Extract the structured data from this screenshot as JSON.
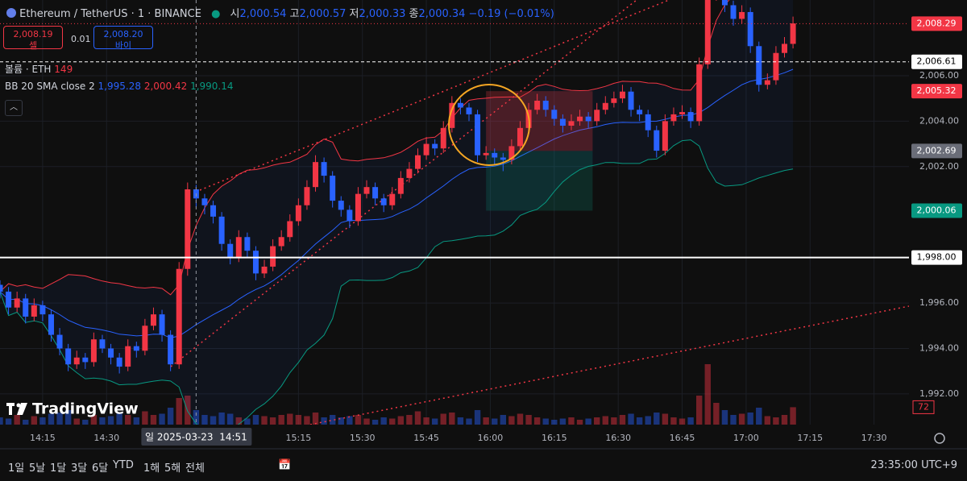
{
  "header": {
    "symbol": "Ethereum / TetherUS · 1 · BINANCE",
    "o_label": "시",
    "o": "2,000.54",
    "h_label": "고",
    "h": "2,000.57",
    "l_label": "저",
    "l": "2,000.33",
    "c_label": "종",
    "c": "2,000.34",
    "change": "−0.19 (−0.01%)"
  },
  "trade": {
    "sell": "2,008.19",
    "sell_label": "셀",
    "spread": "0.01",
    "buy": "2,008.20",
    "buy_label": "바이"
  },
  "indicators": {
    "volume_label": "볼륨 · ETH",
    "volume": "149",
    "bb_label": "BB 20 SMA close 2",
    "bb_basis": "1,995.28",
    "bb_upper": "2,000.42",
    "bb_lower": "1,990.14"
  },
  "logo": "TradingView",
  "toolbar": {
    "ranges": [
      "1일",
      "5날",
      "1달",
      "3달",
      "6달",
      "YTD",
      "1해",
      "5해",
      "전체"
    ],
    "clock": "23:35:00 UTC+9"
  },
  "chart_data": {
    "type": "candlestick",
    "up_color": "#f23645",
    "down_color": "#2962ff",
    "ylim": [
      1990.65,
      2009.33
    ],
    "yticks": [
      {
        "value": 1992,
        "label": "1,992.00"
      },
      {
        "value": 1994,
        "label": "1,994.00"
      },
      {
        "value": 1996,
        "label": "1,996.00"
      },
      {
        "value": 2002,
        "label": "2,002.00"
      },
      {
        "value": 2004,
        "label": "2,004.00"
      },
      {
        "value": 2006,
        "label": "2,006.00"
      }
    ],
    "xlim": [
      0,
      106.6
    ],
    "xticks": [
      {
        "value": 5,
        "label": "14:15"
      },
      {
        "value": 12.5,
        "label": "14:30"
      },
      {
        "value": 35,
        "label": "15:15"
      },
      {
        "value": 42.5,
        "label": "15:30"
      },
      {
        "value": 50,
        "label": "15:45"
      },
      {
        "value": 57.5,
        "label": "16:00"
      },
      {
        "value": 65,
        "label": "16:15"
      },
      {
        "value": 72.5,
        "label": "16:30"
      },
      {
        "value": 80,
        "label": "16:45"
      },
      {
        "value": 87.5,
        "label": "17:00"
      },
      {
        "value": 95,
        "label": "17:15"
      },
      {
        "value": 102.5,
        "label": "17:30"
      }
    ],
    "crosshair": {
      "value": 23,
      "label": "일 2025-03-23  14:51"
    },
    "price_lines": [
      {
        "value": 2008.29,
        "label": "2,008.29",
        "color": "#f23645",
        "style": "dotted"
      },
      {
        "value": 2006.61,
        "label": "2,006.61",
        "color": "#ffffff",
        "style": "dashed"
      },
      {
        "value": 2005.32,
        "label": "2,005.32",
        "color": "#f23645",
        "style": "none"
      },
      {
        "value": 2002.69,
        "label": "2,002.69",
        "color": "#6a6d78",
        "style": "none"
      },
      {
        "value": 2000.06,
        "label": "2,000.06",
        "color": "#089981",
        "style": "none"
      },
      {
        "value": 1998,
        "label": "1,998.00",
        "color": "#ffffff",
        "style": "solid"
      }
    ],
    "position": {
      "target": 2005.32,
      "entry": 2002.69,
      "stop": 2000.06,
      "xrange": [
        57,
        69.5
      ]
    },
    "vlim": [
      0,
      500
    ],
    "volume_now": 72,
    "candles": [
      [
        1996.8,
        1997.0,
        1996.2,
        1996.5
      ],
      [
        1996.5,
        1996.7,
        1995.5,
        1995.8
      ],
      [
        1995.8,
        1996.5,
        1995.6,
        1996.2
      ],
      [
        1996.2,
        1996.4,
        1995.1,
        1995.4
      ],
      [
        1995.4,
        1996.2,
        1995.2,
        1995.9
      ],
      [
        1995.9,
        1996.1,
        1995.2,
        1995.5
      ],
      [
        1995.5,
        1995.7,
        1994.3,
        1994.6
      ],
      [
        1994.6,
        1994.9,
        1993.7,
        1994.0
      ],
      [
        1994.0,
        1994.2,
        1993.0,
        1993.3
      ],
      [
        1993.3,
        1993.9,
        1993.1,
        1993.6
      ],
      [
        1993.6,
        1993.8,
        1993.1,
        1993.4
      ],
      [
        1993.4,
        1994.7,
        1993.2,
        1994.4
      ],
      [
        1994.4,
        1994.6,
        1993.8,
        1994.0
      ],
      [
        1994.0,
        1994.2,
        1993.3,
        1993.6
      ],
      [
        1993.6,
        1993.8,
        1992.9,
        1993.2
      ],
      [
        1993.2,
        1994.4,
        1993.0,
        1994.1
      ],
      [
        1994.1,
        1994.3,
        1993.6,
        1993.9
      ],
      [
        1993.9,
        1995.3,
        1993.7,
        1995.0
      ],
      [
        1995.0,
        1995.8,
        1994.8,
        1995.5
      ],
      [
        1995.5,
        1995.7,
        1994.3,
        1994.6
      ],
      [
        1994.6,
        1994.8,
        1993.0,
        1993.3
      ],
      [
        1993.3,
        1997.8,
        1993.1,
        1997.5
      ],
      [
        1997.5,
        2001.3,
        1997.2,
        2001.0
      ],
      [
        2001.0,
        2001.2,
        2000.2,
        2000.6
      ],
      [
        2000.6,
        2000.8,
        1999.9,
        2000.3
      ],
      [
        2000.3,
        2000.5,
        1999.5,
        1999.8
      ],
      [
        1999.8,
        2000.0,
        1998.3,
        1998.6
      ],
      [
        1998.6,
        1998.8,
        1997.7,
        1998.0
      ],
      [
        1998.0,
        1999.2,
        1997.8,
        1998.9
      ],
      [
        1998.9,
        1999.1,
        1998.0,
        1998.3
      ],
      [
        1998.3,
        1998.5,
        1997.0,
        1997.3
      ],
      [
        1997.3,
        1997.9,
        1997.1,
        1997.6
      ],
      [
        1997.6,
        1998.8,
        1997.4,
        1998.5
      ],
      [
        1998.5,
        1999.2,
        1998.3,
        1998.9
      ],
      [
        1998.9,
        1999.9,
        1998.7,
        1999.6
      ],
      [
        1999.6,
        2000.6,
        1999.4,
        2000.3
      ],
      [
        2000.3,
        2001.4,
        2000.1,
        2001.1
      ],
      [
        2001.1,
        2002.5,
        2000.9,
        2002.2
      ],
      [
        2002.2,
        2002.4,
        2001.3,
        2001.6
      ],
      [
        2001.6,
        2001.8,
        2000.2,
        2000.5
      ],
      [
        2000.5,
        2000.7,
        1999.8,
        2000.1
      ],
      [
        2000.1,
        2000.3,
        1999.3,
        1999.6
      ],
      [
        1999.6,
        2001.1,
        1999.4,
        2000.8
      ],
      [
        2000.8,
        2001.4,
        2000.6,
        2001.1
      ],
      [
        2001.1,
        2001.3,
        2000.3,
        2000.6
      ],
      [
        2000.6,
        2000.8,
        2000.0,
        2000.3
      ],
      [
        2000.3,
        2001.1,
        2000.1,
        2000.8
      ],
      [
        2000.8,
        2001.8,
        2000.6,
        2001.5
      ],
      [
        2001.5,
        2002.2,
        2001.3,
        2001.9
      ],
      [
        2001.9,
        2002.8,
        2001.7,
        2002.5
      ],
      [
        2002.5,
        2003.3,
        2002.3,
        2003.0
      ],
      [
        2003.0,
        2003.2,
        2002.5,
        2002.8
      ],
      [
        2002.8,
        2004.0,
        2002.6,
        2003.7
      ],
      [
        2003.7,
        2005.1,
        2003.5,
        2004.8
      ],
      [
        2004.8,
        2005.0,
        2004.3,
        2004.6
      ],
      [
        2004.6,
        2004.8,
        2004.0,
        2004.3
      ],
      [
        2004.3,
        2004.5,
        2002.2,
        2002.5
      ],
      [
        2002.5,
        2002.9,
        2002.3,
        2002.6
      ],
      [
        2002.6,
        2002.8,
        2002.1,
        2002.4
      ],
      [
        2002.4,
        2002.6,
        2001.8,
        2002.3
      ],
      [
        2002.3,
        2003.2,
        2002.1,
        2002.9
      ],
      [
        2002.9,
        2004.0,
        2002.7,
        2003.7
      ],
      [
        2003.7,
        2004.8,
        2003.5,
        2004.5
      ],
      [
        2004.5,
        2005.2,
        2004.3,
        2004.9
      ],
      [
        2004.9,
        2005.1,
        2004.2,
        2004.5
      ],
      [
        2004.5,
        2004.7,
        2003.8,
        2004.1
      ],
      [
        2004.1,
        2004.3,
        2003.5,
        2003.8
      ],
      [
        2003.8,
        2004.3,
        2003.6,
        2004.0
      ],
      [
        2004.0,
        2004.5,
        2003.8,
        2004.2
      ],
      [
        2004.2,
        2004.4,
        2003.7,
        2004.0
      ],
      [
        2004.0,
        2004.8,
        2003.8,
        2004.5
      ],
      [
        2004.5,
        2005.1,
        2004.3,
        2004.8
      ],
      [
        2004.8,
        2005.3,
        2004.6,
        2005.0
      ],
      [
        2005.0,
        2005.6,
        2004.8,
        2005.3
      ],
      [
        2005.3,
        2005.5,
        2004.2,
        2004.5
      ],
      [
        2004.5,
        2004.7,
        2004.0,
        2004.3
      ],
      [
        2004.3,
        2004.5,
        2003.3,
        2003.6
      ],
      [
        2003.6,
        2003.8,
        2002.4,
        2002.7
      ],
      [
        2002.7,
        2004.3,
        2002.5,
        2004.0
      ],
      [
        2004.0,
        2004.6,
        2003.8,
        2004.3
      ],
      [
        2004.3,
        2004.7,
        2004.1,
        2004.4
      ],
      [
        2004.4,
        2004.6,
        2003.7,
        2004.0
      ],
      [
        2004.0,
        2006.8,
        2003.8,
        2006.5
      ],
      [
        2006.5,
        2009.8,
        2006.3,
        2009.5
      ],
      [
        2009.5,
        2010.3,
        2009.3,
        2010.0
      ],
      [
        2010.0,
        2010.2,
        2008.8,
        2009.1
      ],
      [
        2009.1,
        2009.3,
        2008.2,
        2008.5
      ],
      [
        2008.5,
        2009.1,
        2008.3,
        2008.8
      ],
      [
        2008.8,
        2009.0,
        2007.0,
        2007.3
      ],
      [
        2007.3,
        2007.5,
        2005.3,
        2005.6
      ],
      [
        2005.6,
        2006.1,
        2005.4,
        2005.8
      ],
      [
        2005.8,
        2007.3,
        2005.6,
        2007.0
      ],
      [
        2007.0,
        2007.7,
        2006.8,
        2007.4
      ],
      [
        2007.4,
        2008.6,
        2007.2,
        2008.3
      ]
    ],
    "volumes": [
      30,
      25,
      40,
      20,
      35,
      30,
      45,
      50,
      60,
      25,
      20,
      40,
      30,
      35,
      45,
      40,
      30,
      55,
      40,
      45,
      70,
      110,
      120,
      60,
      40,
      35,
      50,
      45,
      30,
      25,
      40,
      35,
      30,
      40,
      45,
      40,
      35,
      50,
      30,
      40,
      30,
      35,
      40,
      25,
      20,
      30,
      25,
      35,
      40,
      55,
      30,
      25,
      45,
      50,
      30,
      25,
      60,
      30,
      25,
      40,
      35,
      45,
      40,
      30,
      25,
      20,
      25,
      30,
      20,
      25,
      30,
      35,
      30,
      40,
      45,
      30,
      35,
      50,
      45,
      30,
      25,
      30,
      120,
      250,
      90,
      60,
      40,
      45,
      50,
      70,
      35,
      30,
      40,
      72
    ]
  }
}
